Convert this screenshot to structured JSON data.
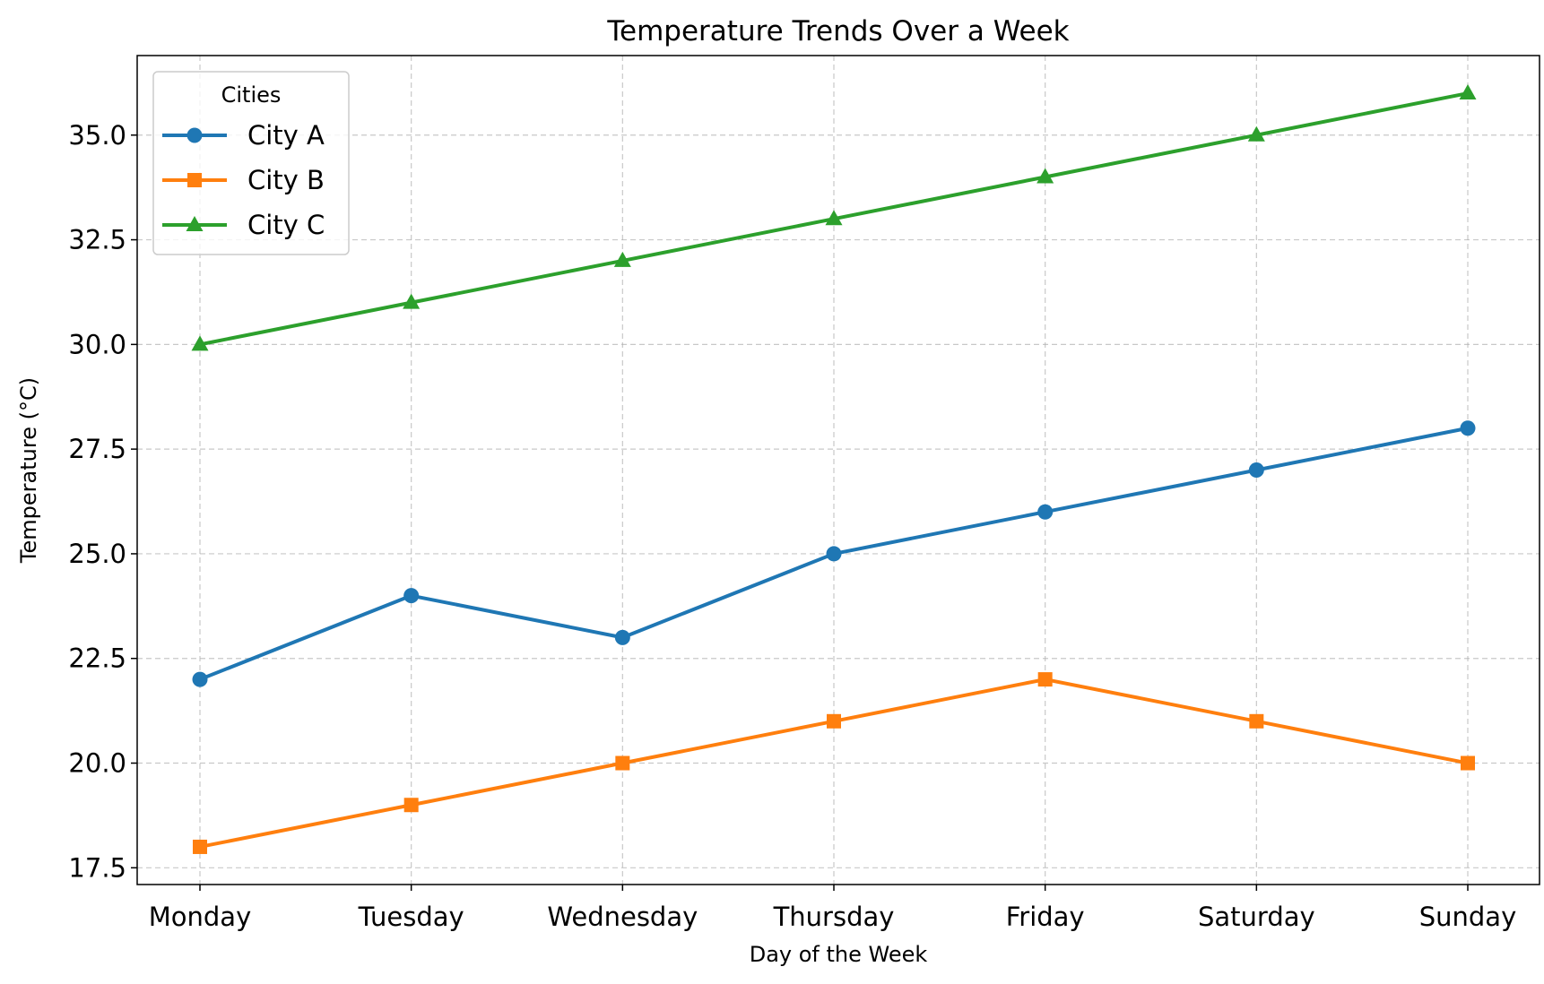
{
  "chart_data": {
    "type": "line",
    "title": "Temperature Trends Over a Week",
    "xlabel": "Day of the Week",
    "ylabel": "Temperature (°C)",
    "categories": [
      "Monday",
      "Tuesday",
      "Wednesday",
      "Thursday",
      "Friday",
      "Saturday",
      "Sunday"
    ],
    "series": [
      {
        "name": "City A",
        "values": [
          22,
          24,
          23,
          25,
          26,
          27,
          28
        ],
        "color": "#1f77b4",
        "marker": "circle"
      },
      {
        "name": "City B",
        "values": [
          18,
          19,
          20,
          21,
          22,
          21,
          20
        ],
        "color": "#ff7f0e",
        "marker": "square"
      },
      {
        "name": "City C",
        "values": [
          30,
          31,
          32,
          33,
          34,
          35,
          36
        ],
        "color": "#2ca02c",
        "marker": "triangle"
      }
    ],
    "ylim": [
      17.1,
      36.9
    ],
    "yticks": [
      17.5,
      20.0,
      22.5,
      25.0,
      27.5,
      30.0,
      32.5,
      35.0
    ],
    "ytick_labels": [
      "17.5",
      "20.0",
      "22.5",
      "25.0",
      "27.5",
      "30.0",
      "32.5",
      "35.0"
    ],
    "grid": true,
    "grid_style": "dashed",
    "legend_title": "Cities",
    "legend_position": "top-left"
  }
}
